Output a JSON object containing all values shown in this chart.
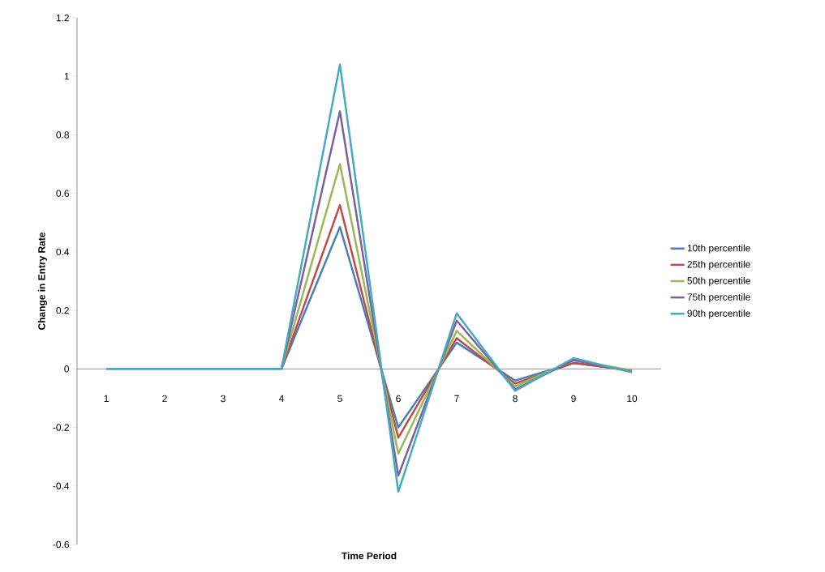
{
  "chart_data": {
    "type": "line",
    "xlabel": "Time Period",
    "ylabel": "Change in Entry Rate",
    "categories": [
      "1",
      "2",
      "3",
      "4",
      "5",
      "6",
      "7",
      "8",
      "9",
      "10"
    ],
    "series": [
      {
        "name": "10th percentile",
        "color": "#4a7ebb",
        "values": [
          0,
          0,
          0,
          0,
          0.485,
          -0.2,
          0.09,
          -0.04,
          0.02,
          -0.005
        ]
      },
      {
        "name": "25th percentile",
        "color": "#be4b48",
        "values": [
          null,
          null,
          null,
          0,
          0.56,
          -0.235,
          0.105,
          -0.05,
          0.02,
          -0.005
        ]
      },
      {
        "name": "50th percentile",
        "color": "#98b954",
        "values": [
          null,
          null,
          null,
          0,
          0.7,
          -0.29,
          0.13,
          -0.06,
          0.03,
          -0.005
        ]
      },
      {
        "name": "75th percentile",
        "color": "#7d60a0",
        "values": [
          null,
          null,
          null,
          0,
          0.88,
          -0.365,
          0.165,
          -0.07,
          0.03,
          -0.01
        ]
      },
      {
        "name": "90th percentile",
        "color": "#46aac5",
        "values": [
          0,
          0,
          0,
          0,
          1.04,
          -0.42,
          0.19,
          -0.075,
          0.037,
          -0.012
        ]
      }
    ],
    "ylim": [
      -0.6,
      1.2
    ],
    "yticks": [
      -0.6,
      -0.4,
      -0.2,
      0,
      0.2,
      0.4,
      0.6,
      0.8,
      1,
      1.2
    ],
    "legend": "right",
    "marker": "none",
    "line_style": "solid"
  }
}
